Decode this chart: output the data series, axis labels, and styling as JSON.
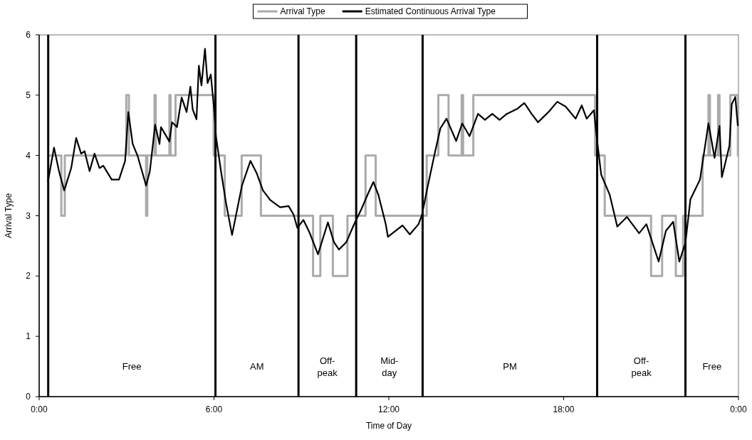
{
  "chart_data": {
    "type": "line",
    "xlabel": "Time of Day",
    "ylabel": "Arrival Type",
    "xlim": [
      0,
      24
    ],
    "ylim": [
      0,
      6
    ],
    "xticks": [
      {
        "value": 0,
        "label": "0:00"
      },
      {
        "value": 6,
        "label": "6:00"
      },
      {
        "value": 12,
        "label": "12:00"
      },
      {
        "value": 18,
        "label": "18:00"
      },
      {
        "value": 24,
        "label": "0:00"
      }
    ],
    "yticks": [
      0,
      1,
      2,
      3,
      4,
      5,
      6
    ],
    "grid": false,
    "legend": "top",
    "line_style": "solid",
    "marker": "none",
    "series": [
      {
        "name": "Arrival Type",
        "type": "step",
        "color": "#aaaaaa",
        "x": [
          0.3,
          0.76,
          0.88,
          2.99,
          3.08,
          3.67,
          3.71,
          3.96,
          4.0,
          4.47,
          4.51,
          4.68,
          5.99,
          6.37,
          6.95,
          7.61,
          9.4,
          9.65,
          10.08,
          10.58,
          11.2,
          11.55,
          13.3,
          13.7,
          14.05,
          14.5,
          14.55,
          14.9,
          19.08,
          19.41,
          21.0,
          21.38,
          21.85,
          22.1,
          22.77,
          22.97,
          23.02,
          23.3,
          23.35,
          23.72,
          23.98,
          24
        ],
        "values": [
          4,
          3,
          4,
          5,
          4,
          3,
          4,
          5,
          4,
          5,
          4,
          5,
          4,
          3,
          4,
          3,
          2,
          3,
          2,
          3,
          4,
          3,
          4,
          5,
          4,
          5,
          4,
          5,
          4,
          3,
          2,
          3,
          2,
          3,
          4,
          5,
          4,
          5,
          4,
          5,
          4,
          4
        ]
      },
      {
        "name": "Estimated Continuous Arrival Type",
        "color": "#000000",
        "x": [
          0.3,
          0.51,
          0.68,
          0.86,
          1.1,
          1.27,
          1.44,
          1.56,
          1.73,
          1.9,
          2.07,
          2.2,
          2.49,
          2.74,
          2.95,
          3.06,
          3.21,
          3.38,
          3.67,
          3.8,
          3.98,
          4.13,
          4.18,
          4.47,
          4.56,
          4.73,
          4.89,
          5.06,
          5.19,
          5.27,
          5.4,
          5.48,
          5.57,
          5.69,
          5.78,
          5.89,
          5.99,
          6.07,
          6.24,
          6.41,
          6.62,
          6.96,
          7.25,
          7.47,
          7.68,
          7.93,
          8.27,
          8.56,
          8.73,
          8.86,
          9.07,
          9.28,
          9.57,
          9.91,
          10.12,
          10.29,
          10.54,
          10.8,
          11.05,
          11.3,
          11.47,
          11.64,
          11.89,
          11.97,
          12.47,
          12.72,
          13.02,
          13.14,
          13.31,
          13.56,
          13.77,
          13.98,
          14.31,
          14.52,
          14.77,
          15.06,
          15.3,
          15.55,
          15.8,
          16.05,
          16.4,
          16.65,
          16.9,
          17.12,
          17.5,
          17.78,
          18.07,
          18.41,
          18.62,
          18.79,
          19.04,
          19.13,
          19.29,
          19.58,
          19.84,
          20.17,
          20.59,
          20.84,
          21.26,
          21.51,
          21.76,
          21.97,
          22.18,
          22.35,
          22.68,
          22.97,
          23.18,
          23.35,
          23.43,
          23.69,
          23.77,
          23.89,
          23.98
        ],
        "values": [
          3.56,
          4.13,
          3.74,
          3.42,
          3.79,
          4.29,
          4.03,
          4.07,
          3.74,
          4.03,
          3.79,
          3.83,
          3.6,
          3.6,
          3.91,
          4.72,
          4.19,
          3.99,
          3.5,
          3.74,
          4.51,
          4.19,
          4.47,
          4.23,
          4.55,
          4.47,
          4.96,
          4.72,
          5.14,
          4.76,
          4.6,
          5.49,
          5.16,
          5.77,
          5.2,
          5.34,
          4.84,
          4.31,
          3.74,
          3.22,
          2.68,
          3.5,
          3.91,
          3.7,
          3.42,
          3.26,
          3.14,
          3.16,
          3.02,
          2.8,
          2.93,
          2.72,
          2.36,
          2.89,
          2.56,
          2.44,
          2.56,
          2.85,
          3.1,
          3.38,
          3.56,
          3.35,
          2.87,
          2.65,
          2.84,
          2.69,
          2.86,
          3.02,
          3.43,
          4.0,
          4.45,
          4.61,
          4.24,
          4.53,
          4.32,
          4.69,
          4.59,
          4.69,
          4.59,
          4.69,
          4.77,
          4.87,
          4.69,
          4.55,
          4.73,
          4.89,
          4.81,
          4.61,
          4.83,
          4.61,
          4.75,
          4.32,
          3.68,
          3.35,
          2.82,
          2.98,
          2.71,
          2.86,
          2.24,
          2.75,
          2.9,
          2.24,
          2.55,
          3.27,
          3.6,
          4.53,
          3.96,
          4.49,
          3.64,
          4.16,
          4.85,
          4.97,
          4.49
        ]
      }
    ],
    "ref_lines": [
      {
        "axis": "x",
        "value": 0.31,
        "color": "#000000"
      },
      {
        "axis": "x",
        "value": 6.05,
        "color": "#000000"
      },
      {
        "axis": "x",
        "value": 8.9,
        "color": "#000000"
      },
      {
        "axis": "x",
        "value": 10.88,
        "color": "#000000"
      },
      {
        "axis": "x",
        "value": 13.16,
        "color": "#000000"
      },
      {
        "axis": "x",
        "value": 19.15,
        "color": "#000000"
      },
      {
        "axis": "x",
        "value": 22.18,
        "color": "#000000"
      }
    ],
    "annotations": [
      "Free",
      "AM",
      "Off-peak",
      "Mid-day",
      "PM",
      "Off-peak",
      "Free"
    ]
  }
}
